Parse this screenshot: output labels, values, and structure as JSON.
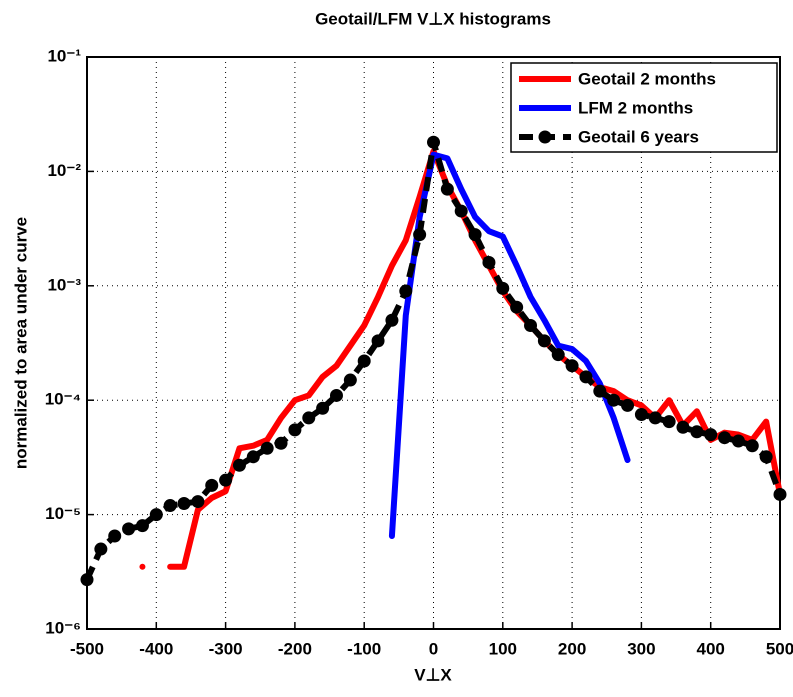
{
  "chart_data": {
    "type": "line",
    "title": "Geotail/LFM V⊥X histograms",
    "xlabel": "V⊥X",
    "ylabel": "normalized to area under curve",
    "x": [
      -500,
      -480,
      -460,
      -440,
      -420,
      -400,
      -380,
      -360,
      -340,
      -320,
      -300,
      -280,
      -260,
      -240,
      -220,
      -200,
      -180,
      -160,
      -140,
      -120,
      -100,
      -80,
      -60,
      -40,
      -20,
      0,
      20,
      40,
      60,
      80,
      100,
      120,
      140,
      160,
      180,
      200,
      220,
      240,
      260,
      280,
      300,
      320,
      340,
      360,
      380,
      400,
      420,
      440,
      460,
      480,
      500
    ],
    "series": [
      {
        "name": "Geotail 2 months",
        "color": "#ff0000",
        "linestyle": "-",
        "values": [
          null,
          null,
          null,
          null,
          3.5e-06,
          null,
          3.5e-06,
          3.5e-06,
          1.1e-05,
          1.4e-05,
          1.6e-05,
          3.8e-05,
          4e-05,
          4.5e-05,
          7e-05,
          0.0001,
          0.00011,
          0.00016,
          0.0002,
          0.0003,
          0.00045,
          0.0008,
          0.0015,
          0.0025,
          0.006,
          0.015,
          0.0075,
          0.0045,
          0.0025,
          0.0015,
          0.0009,
          0.0006,
          0.00045,
          0.00033,
          0.00025,
          0.0002,
          0.00016,
          0.00013,
          0.00012,
          0.0001,
          9e-05,
          7e-05,
          0.0001,
          6e-05,
          8e-05,
          4.5e-05,
          5.2e-05,
          5e-05,
          4.5e-05,
          6.5e-05,
          1.5e-05
        ]
      },
      {
        "name": "LFM 2 months",
        "color": "#0000ff",
        "linestyle": "-",
        "values": [
          null,
          null,
          null,
          null,
          null,
          null,
          null,
          null,
          null,
          null,
          null,
          null,
          null,
          null,
          null,
          null,
          null,
          null,
          null,
          null,
          null,
          null,
          6.5e-06,
          0.00055,
          0.004,
          0.014,
          0.013,
          0.007,
          0.004,
          0.003,
          0.0027,
          0.0015,
          0.0008,
          0.0005,
          0.0003,
          0.00028,
          0.00022,
          0.00014,
          7e-05,
          3e-05,
          null,
          null,
          null,
          null,
          null,
          null,
          null,
          null,
          null,
          null,
          null
        ]
      },
      {
        "name": "Geotail 6 years",
        "color": "#000000",
        "linestyle": "--",
        "marker": "o",
        "values": [
          2.7e-06,
          5e-06,
          6.5e-06,
          7.5e-06,
          8e-06,
          1e-05,
          1.2e-05,
          1.25e-05,
          1.3e-05,
          1.8e-05,
          2e-05,
          2.7e-05,
          3.2e-05,
          3.8e-05,
          4.2e-05,
          5.5e-05,
          7e-05,
          8.5e-05,
          0.00011,
          0.00015,
          0.00022,
          0.00033,
          0.0005,
          0.0009,
          0.0028,
          0.018,
          0.007,
          0.0045,
          0.0028,
          0.0016,
          0.00095,
          0.00065,
          0.00045,
          0.00033,
          0.00025,
          0.0002,
          0.00016,
          0.00012,
          0.0001,
          9e-05,
          7.5e-05,
          7e-05,
          6.5e-05,
          5.8e-05,
          5.3e-05,
          5e-05,
          4.7e-05,
          4.4e-05,
          4e-05,
          3.2e-05,
          1.5e-05
        ]
      }
    ],
    "xlim": [
      -500,
      500
    ],
    "xticks": [
      -500,
      -400,
      -300,
      -200,
      -100,
      0,
      100,
      200,
      300,
      400,
      500
    ],
    "ylim": [
      1e-06,
      0.1
    ],
    "ylog": true,
    "yticks": [
      {
        "value": 1e-06,
        "label": "10⁻⁶"
      },
      {
        "value": 1e-05,
        "label": "10⁻⁵"
      },
      {
        "value": 0.0001,
        "label": "10⁻⁴"
      },
      {
        "value": 0.001,
        "label": "10⁻³"
      },
      {
        "value": 0.01,
        "label": "10⁻²"
      },
      {
        "value": 0.1,
        "label": "10⁻¹"
      }
    ],
    "grid": true,
    "legend": "northeast"
  }
}
